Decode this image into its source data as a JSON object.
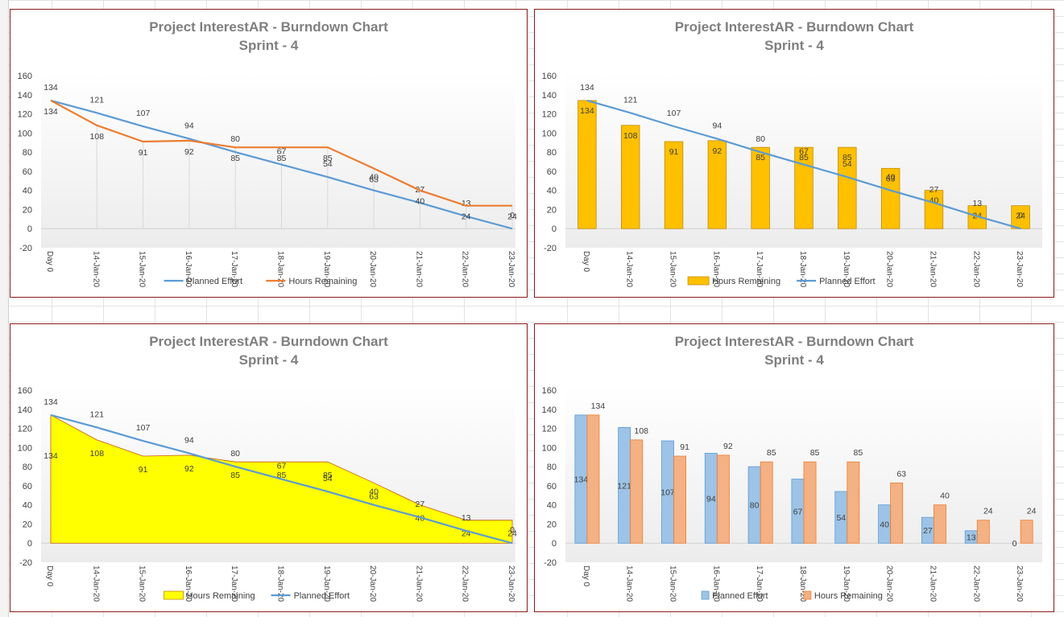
{
  "chart_data": [
    {
      "type": "line",
      "title": "Project InterestAR - Burndown Chart",
      "subtitle": "Sprint - 4",
      "categories": [
        "Day 0",
        "14-Jan-20",
        "15-Jan-20",
        "16-Jan-20",
        "17-Jan-20",
        "18-Jan-20",
        "19-Jan-20",
        "20-Jan-20",
        "21-Jan-20",
        "22-Jan-20",
        "23-Jan-20"
      ],
      "series": [
        {
          "name": "Planned Effort",
          "kind": "line",
          "color": "#5b9bd5",
          "values": [
            134,
            121,
            107,
            94,
            80,
            67,
            54,
            40,
            27,
            13,
            0
          ]
        },
        {
          "name": "Hours Remaining",
          "kind": "line",
          "color": "#ed7d31",
          "values": [
            134,
            108,
            91,
            92,
            85,
            85,
            85,
            63,
            40,
            24,
            24
          ]
        }
      ],
      "ylim": [
        -20,
        160
      ],
      "yticks": [
        -20,
        0,
        20,
        40,
        60,
        80,
        100,
        120,
        140,
        160
      ],
      "legend": "bottom"
    },
    {
      "type": "bar",
      "title": "Project InterestAR - Burndown Chart",
      "subtitle": "Sprint - 4",
      "categories": [
        "Day 0",
        "14-Jan-20",
        "15-Jan-20",
        "16-Jan-20",
        "17-Jan-20",
        "18-Jan-20",
        "19-Jan-20",
        "20-Jan-20",
        "21-Jan-20",
        "22-Jan-20",
        "23-Jan-20"
      ],
      "series": [
        {
          "name": "Hours Remaining",
          "kind": "bar",
          "color": "#ffc000",
          "values": [
            134,
            108,
            91,
            92,
            85,
            85,
            85,
            63,
            40,
            24,
            24
          ]
        },
        {
          "name": "Planned Effort",
          "kind": "line",
          "color": "#5b9bd5",
          "values": [
            134,
            121,
            107,
            94,
            80,
            67,
            54,
            40,
            27,
            13,
            0
          ]
        }
      ],
      "ylim": [
        -20,
        160
      ],
      "yticks": [
        -20,
        0,
        20,
        40,
        60,
        80,
        100,
        120,
        140,
        160
      ],
      "legend": "bottom"
    },
    {
      "type": "area",
      "title": "Project InterestAR - Burndown Chart",
      "subtitle": "Sprint - 4",
      "categories": [
        "Day 0",
        "14-Jan-20",
        "15-Jan-20",
        "16-Jan-20",
        "17-Jan-20",
        "18-Jan-20",
        "19-Jan-20",
        "20-Jan-20",
        "21-Jan-20",
        "22-Jan-20",
        "23-Jan-20"
      ],
      "series": [
        {
          "name": "Hours Remaining",
          "kind": "area",
          "color": "#ffff00",
          "values": [
            134,
            108,
            91,
            92,
            85,
            85,
            85,
            63,
            40,
            24,
            24
          ]
        },
        {
          "name": "Planned Effort",
          "kind": "line",
          "color": "#5b9bd5",
          "values": [
            134,
            121,
            107,
            94,
            80,
            67,
            54,
            40,
            27,
            13,
            0
          ]
        }
      ],
      "ylim": [
        -20,
        160
      ],
      "yticks": [
        -20,
        0,
        20,
        40,
        60,
        80,
        100,
        120,
        140,
        160
      ],
      "legend": "bottom"
    },
    {
      "type": "bar",
      "title": "Project InterestAR - Burndown Chart",
      "subtitle": "Sprint - 4",
      "categories": [
        "Day 0",
        "14-Jan-20",
        "15-Jan-20",
        "16-Jan-20",
        "17-Jan-20",
        "18-Jan-20",
        "19-Jan-20",
        "20-Jan-20",
        "21-Jan-20",
        "22-Jan-20",
        "23-Jan-20"
      ],
      "series": [
        {
          "name": "Planned Effort",
          "kind": "bar",
          "color": "#9dc3e6",
          "stroke": "#5b9bd5",
          "values": [
            134,
            121,
            107,
            94,
            80,
            67,
            54,
            40,
            27,
            13,
            0
          ]
        },
        {
          "name": "Hours Remaining",
          "kind": "bar",
          "color": "#f4b183",
          "stroke": "#ed7d31",
          "values": [
            134,
            108,
            91,
            92,
            85,
            85,
            85,
            63,
            40,
            24,
            24
          ]
        }
      ],
      "ylim": [
        -20,
        160
      ],
      "yticks": [
        -20,
        0,
        20,
        40,
        60,
        80,
        100,
        120,
        140,
        160
      ],
      "legend": "bottom"
    }
  ]
}
